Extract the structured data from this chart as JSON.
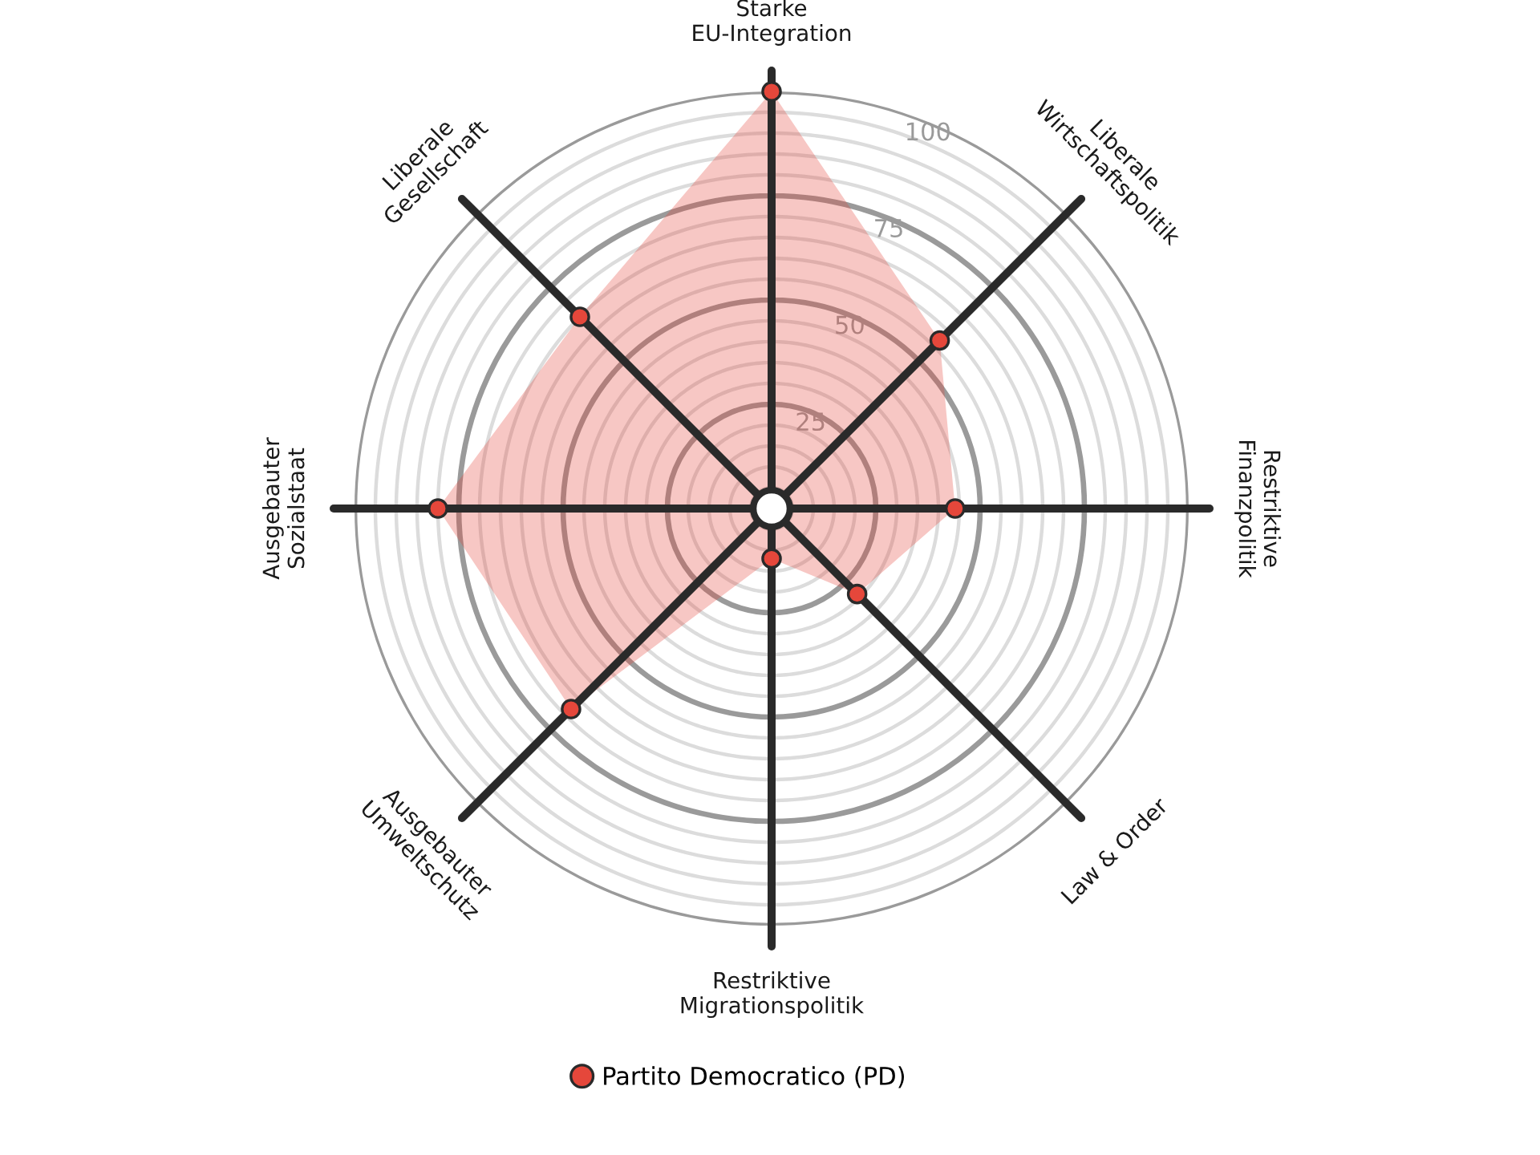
{
  "chart_data": {
    "type": "radar",
    "categories": [
      "Starke\nEU-Integration",
      "Liberale\nWirtschaftspolitik",
      "Restriktive\nFinanzpolitik",
      "Law & Order",
      "Restriktive\nMigrationspolitik",
      "Ausgebauter\nUmweltschutz",
      "Ausgebauter\nSozialstaat",
      "Liberale\nGesellschaft"
    ],
    "series": [
      {
        "name": "Partito Democratico (PD)",
        "color": "#e5473b",
        "values": [
          100,
          57,
          44,
          29,
          12,
          68,
          80,
          65
        ]
      }
    ],
    "ylim": [
      0,
      100
    ],
    "yticks": [
      25,
      50,
      75,
      100
    ],
    "grid": true,
    "legend": "bottom",
    "marker": "circle"
  }
}
